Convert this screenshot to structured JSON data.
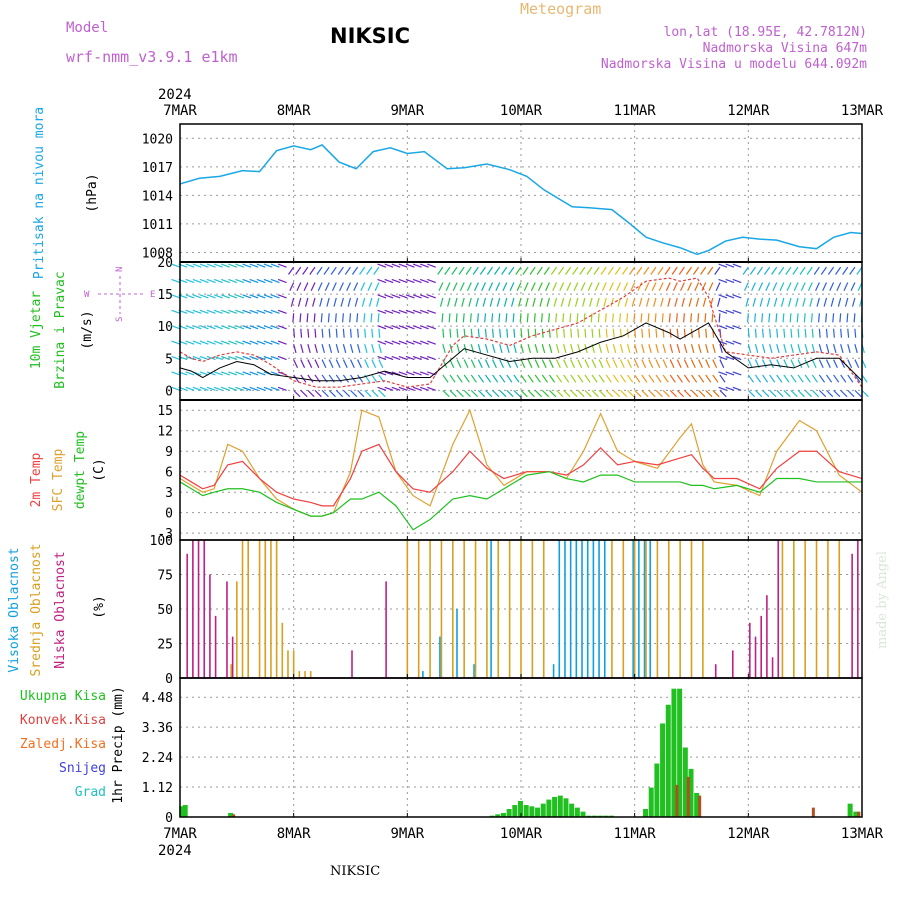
{
  "header": {
    "model_label": "Model",
    "model_name": "wrf-nmm_v3.9.1 e1km",
    "station": "NIKSIC",
    "product": "Meteogram",
    "coords": "lon,lat (18.95E, 42.7812N)",
    "elevation": "Nadmorska Visina 647m",
    "model_elevation": "Nadmorska Visina u modelu 644.092m",
    "year_top": "2024",
    "year_bottom": "2024",
    "footer_station": "NIKSIC",
    "credit": "made by Angel"
  },
  "colors": {
    "pressure": "#1aa7e6",
    "temp2m": "#f04040",
    "sfc_temp": "#e0a030",
    "dewpt": "#20c020",
    "high_cloud": "#10a0e0",
    "mid_cloud": "#d8a020",
    "low_cloud": "#c02080",
    "total_precip": "#20c020",
    "conv_precip": "#e04040",
    "frozen": "#f07020",
    "snow": "#4040e0",
    "grad": "#20c0c0",
    "wind_slow": "#7020c0",
    "wind_fast": "#ff3030"
  },
  "x_axis": {
    "tick_labels": [
      "7MAR",
      "8MAR",
      "9MAR",
      "10MAR",
      "11MAR",
      "12MAR",
      "13MAR"
    ],
    "range_days": [
      0,
      6
    ]
  },
  "panels": {
    "pressure": {
      "labels": [
        "Pritisak na nivou mora"
      ],
      "unit": "(hPa)",
      "ticks": [
        "1020",
        "1017",
        "1014",
        "1011",
        "1008"
      ]
    },
    "wind": {
      "labels": [
        "10m Vjetar",
        "Brzina i Pravac"
      ],
      "unit": "(m/s)",
      "ticks": [
        "20",
        "15",
        "10",
        "5",
        "0"
      ],
      "compass": {
        "n": "N",
        "s": "S",
        "e": "E",
        "w": "W"
      }
    },
    "temp": {
      "labels": [
        "2m Temp",
        "SFC Temp",
        "dewpt Temp"
      ],
      "unit": "(C)",
      "ticks": [
        "15",
        "12",
        "9",
        "6",
        "3",
        "0",
        "-3"
      ]
    },
    "cloud": {
      "labels": [
        "Visoka Oblacnost",
        "Srednja Oblacnost",
        "Niska Oblacnost"
      ],
      "unit": "(%)",
      "ticks": [
        "100",
        "75",
        "50",
        "25",
        "0"
      ]
    },
    "precip": {
      "legend": [
        "Ukupna Kisa",
        "Konvek.Kisa",
        "Zaledj.Kisa",
        "Snijeg",
        "Grad"
      ],
      "unit": "1hr Precip (mm)",
      "ticks": [
        "4.48",
        "3.36",
        "2.24",
        "1.12",
        "0"
      ]
    }
  },
  "chart_data": [
    {
      "type": "line",
      "title": "Pritisak na nivou mora",
      "ylabel": "(hPa)",
      "ylim": [
        1007,
        1021.5
      ],
      "x_unit": "days since 7MAR 00",
      "x": [
        0,
        0.17,
        0.35,
        0.55,
        0.7,
        0.85,
        1.0,
        1.15,
        1.25,
        1.4,
        1.55,
        1.7,
        1.85,
        2.0,
        2.15,
        2.35,
        2.5,
        2.7,
        2.9,
        3.05,
        3.2,
        3.45,
        3.6,
        3.8,
        3.95,
        4.1,
        4.25,
        4.4,
        4.55,
        4.65,
        4.8,
        4.95,
        5.1,
        5.25,
        5.45,
        5.6,
        5.75,
        5.9,
        6.0
      ],
      "values": [
        1015.2,
        1015.8,
        1016.0,
        1016.6,
        1016.5,
        1018.7,
        1019.2,
        1018.8,
        1019.3,
        1017.5,
        1016.8,
        1018.6,
        1019.0,
        1018.4,
        1018.6,
        1016.8,
        1016.9,
        1017.3,
        1016.7,
        1016.0,
        1014.6,
        1012.8,
        1012.7,
        1012.5,
        1011.1,
        1009.6,
        1009.0,
        1008.5,
        1007.8,
        1008.2,
        1009.2,
        1009.6,
        1009.4,
        1009.3,
        1008.6,
        1008.4,
        1009.6,
        1010.1,
        1010.0
      ]
    },
    {
      "type": "line",
      "title": "10m Vjetar Brzina i Pravac",
      "ylabel": "(m/s)",
      "ylim": [
        -1.5,
        20
      ],
      "x_unit": "days since 7MAR 00",
      "series": [
        {
          "x": [
            0,
            0.1,
            0.2,
            0.35,
            0.5,
            0.65,
            0.8,
            1.0,
            1.2,
            1.4,
            1.6,
            1.8,
            2.0,
            2.2,
            2.4,
            2.5,
            2.7,
            2.9,
            3.1,
            3.3,
            3.5,
            3.7,
            3.9,
            4.1,
            4.3,
            4.4,
            4.55,
            4.65,
            4.8,
            5.0,
            5.2,
            5.4,
            5.6,
            5.8,
            6.0
          ],
          "values": [
            3.5,
            3.0,
            2.0,
            3.5,
            4.5,
            4.0,
            2.5,
            2.0,
            1.5,
            1.5,
            2.0,
            3.0,
            2.0,
            2.0,
            5.0,
            6.5,
            5.5,
            4.5,
            5.0,
            5.0,
            6.0,
            7.5,
            8.5,
            10.5,
            9.0,
            8.0,
            9.5,
            10.5,
            6.0,
            3.5,
            4.0,
            3.5,
            5.0,
            5.0,
            1.5
          ]
        },
        {
          "x": [
            0,
            0.1,
            0.2,
            0.35,
            0.5,
            0.65,
            0.8,
            1.0,
            1.2,
            1.4,
            1.6,
            1.8,
            2.0,
            2.2,
            2.4,
            2.5,
            2.7,
            2.9,
            3.1,
            3.3,
            3.5,
            3.7,
            3.9,
            4.1,
            4.3,
            4.4,
            4.55,
            4.65,
            4.8,
            5.0,
            5.2,
            5.4,
            5.6,
            5.8,
            6.0
          ],
          "values": [
            6.0,
            5.0,
            4.5,
            5.5,
            6.0,
            5.5,
            4.0,
            1.5,
            0.5,
            0.5,
            1.0,
            1.5,
            0.5,
            1.0,
            7.0,
            8.5,
            8.0,
            7.0,
            8.5,
            9.5,
            10.5,
            12.5,
            14.5,
            17.0,
            17.5,
            17.0,
            17.5,
            14.5,
            6.0,
            5.5,
            5.0,
            5.5,
            6.0,
            5.5,
            0.5
          ]
        }
      ]
    },
    {
      "type": "line",
      "title": "2m Temp / SFC Temp / dewpt Temp",
      "ylabel": "(C)",
      "ylim": [
        -4,
        16.5
      ],
      "x_unit": "days since 7MAR 00",
      "series": [
        {
          "name": "2m Temp",
          "x": [
            0,
            0.1,
            0.2,
            0.3,
            0.42,
            0.55,
            0.7,
            0.85,
            1.0,
            1.15,
            1.25,
            1.35,
            1.5,
            1.6,
            1.75,
            1.9,
            2.05,
            2.2,
            2.4,
            2.55,
            2.7,
            2.85,
            3.05,
            3.25,
            3.4,
            3.55,
            3.7,
            3.85,
            4.0,
            4.2,
            4.4,
            4.5,
            4.6,
            4.7,
            4.9,
            5.1,
            5.25,
            5.45,
            5.6,
            5.8,
            6.0
          ],
          "values": [
            5.5,
            4.5,
            3.5,
            4.0,
            7.0,
            7.5,
            5.0,
            3.0,
            2.0,
            1.5,
            1.0,
            1.0,
            5.0,
            9.0,
            10.0,
            6.0,
            3.5,
            3.0,
            6.0,
            9.0,
            6.5,
            5.0,
            6.0,
            6.0,
            5.5,
            7.0,
            9.5,
            7.0,
            7.5,
            7.0,
            8.0,
            8.5,
            6.5,
            5.0,
            5.0,
            3.5,
            6.5,
            9.0,
            9.0,
            6.0,
            5.0
          ]
        },
        {
          "name": "SFC Temp",
          "x": [
            0,
            0.1,
            0.2,
            0.3,
            0.42,
            0.55,
            0.7,
            0.85,
            1.0,
            1.15,
            1.25,
            1.35,
            1.5,
            1.6,
            1.75,
            1.9,
            2.05,
            2.2,
            2.4,
            2.55,
            2.7,
            2.85,
            3.05,
            3.25,
            3.4,
            3.55,
            3.7,
            3.85,
            4.0,
            4.2,
            4.4,
            4.5,
            4.6,
            4.7,
            4.9,
            5.1,
            5.25,
            5.45,
            5.6,
            5.8,
            6.0
          ],
          "values": [
            5.0,
            4.0,
            3.0,
            3.5,
            10.0,
            9.0,
            5.0,
            2.0,
            0.5,
            -0.5,
            -0.5,
            0.0,
            6.0,
            15.0,
            14.0,
            6.0,
            2.5,
            1.0,
            10.0,
            15.0,
            7.0,
            4.0,
            6.0,
            6.0,
            5.0,
            9.0,
            14.5,
            9.0,
            7.5,
            6.5,
            11.0,
            13.0,
            7.0,
            4.5,
            4.0,
            2.5,
            9.0,
            13.5,
            12.0,
            5.5,
            3.0
          ]
        },
        {
          "name": "dewpt Temp",
          "x": [
            0,
            0.1,
            0.2,
            0.3,
            0.42,
            0.55,
            0.7,
            0.85,
            1.0,
            1.15,
            1.25,
            1.35,
            1.5,
            1.6,
            1.75,
            1.9,
            2.05,
            2.2,
            2.4,
            2.55,
            2.7,
            2.85,
            3.05,
            3.25,
            3.4,
            3.55,
            3.7,
            3.85,
            4.0,
            4.2,
            4.4,
            4.5,
            4.6,
            4.7,
            4.9,
            5.1,
            5.25,
            5.45,
            5.6,
            5.8,
            6.0
          ],
          "values": [
            4.5,
            3.5,
            2.5,
            3.0,
            3.5,
            3.5,
            3.0,
            1.5,
            0.5,
            -0.5,
            -0.5,
            0.0,
            2.0,
            2.0,
            3.0,
            1.0,
            -2.5,
            -1.0,
            2.0,
            2.5,
            2.0,
            3.5,
            5.5,
            6.0,
            5.0,
            4.5,
            5.5,
            5.5,
            4.5,
            4.5,
            4.5,
            4.0,
            4.0,
            3.5,
            4.0,
            3.0,
            5.0,
            5.0,
            4.5,
            4.5,
            4.5
          ]
        }
      ]
    },
    {
      "type": "bar",
      "title": "Visoka / Srednja / Niska Oblacnost",
      "ylabel": "(%)",
      "ylim": [
        0,
        100
      ],
      "x_unit": "days since 7MAR 00",
      "series": [
        {
          "name": "Visoka Oblacnost",
          "x": [
            2.15,
            2.3,
            2.45,
            2.6,
            2.75,
            3.3,
            3.35,
            3.4,
            3.45,
            3.5,
            3.55,
            3.6,
            3.65,
            3.7,
            3.75,
            4.0,
            4.05,
            4.1,
            4.15
          ],
          "values": [
            5,
            30,
            50,
            10,
            100,
            10,
            100,
            100,
            100,
            100,
            100,
            100,
            100,
            100,
            100,
            100,
            100,
            100,
            100
          ]
        },
        {
          "name": "Srednja Oblacnost",
          "x": [
            0.45,
            0.5,
            0.55,
            0.6,
            0.7,
            0.75,
            0.8,
            0.85,
            0.9,
            0.95,
            1.0,
            1.05,
            1.1,
            1.15,
            2.0,
            2.1,
            2.2,
            2.3,
            2.4,
            2.5,
            2.6,
            2.7,
            2.8,
            2.9,
            3.0,
            3.1,
            3.2,
            3.8,
            3.9,
            4.0,
            4.1,
            4.2,
            4.3,
            4.4,
            4.5,
            4.6,
            5.3,
            5.4,
            5.5,
            5.6,
            5.7,
            5.8
          ],
          "values": [
            10,
            70,
            100,
            100,
            100,
            100,
            100,
            100,
            40,
            20,
            20,
            5,
            5,
            5,
            100,
            100,
            100,
            100,
            100,
            100,
            100,
            100,
            100,
            100,
            100,
            100,
            100,
            100,
            100,
            100,
            100,
            100,
            100,
            100,
            100,
            100,
            100,
            100,
            100,
            100,
            100,
            100
          ]
        },
        {
          "name": "Niska Oblacnost",
          "x": [
            0.05,
            0.1,
            0.15,
            0.2,
            0.25,
            0.3,
            0.4,
            0.45,
            1.5,
            1.8,
            4.7,
            4.85,
            5.0,
            5.05,
            5.1,
            5.15,
            5.2,
            5.25,
            5.9,
            5.95
          ],
          "values": [
            90,
            100,
            100,
            100,
            75,
            45,
            70,
            30,
            20,
            70,
            10,
            20,
            40,
            30,
            45,
            60,
            15,
            100,
            90,
            100
          ]
        }
      ]
    },
    {
      "type": "bar",
      "title": "1hr Precip",
      "ylabel": "1hr Precip (mm)",
      "ylim": [
        0,
        5.2
      ],
      "x_unit": "days since 7MAR 00",
      "series": [
        {
          "name": "Ukupna Kisa",
          "x": [
            0.02,
            0.05,
            0.45,
            2.75,
            2.8,
            2.85,
            2.9,
            2.95,
            3.0,
            3.05,
            3.1,
            3.15,
            3.2,
            3.25,
            3.3,
            3.35,
            3.4,
            3.45,
            3.5,
            3.55,
            3.6,
            3.65,
            3.7,
            3.75,
            3.8,
            4.1,
            4.15,
            4.2,
            4.25,
            4.3,
            4.35,
            4.4,
            4.45,
            4.5,
            4.55,
            5.9,
            5.95
          ],
          "values": [
            0.4,
            0.45,
            0.15,
            0.05,
            0.1,
            0.15,
            0.3,
            0.45,
            0.6,
            0.45,
            0.4,
            0.35,
            0.5,
            0.65,
            0.75,
            0.8,
            0.7,
            0.5,
            0.35,
            0.2,
            0.05,
            0.05,
            0.05,
            0.05,
            0.05,
            0.3,
            1.1,
            2.0,
            3.5,
            4.2,
            4.8,
            4.8,
            2.6,
            1.8,
            0.9,
            0.5,
            0.2
          ]
        },
        {
          "name": "Konvek.Kisa",
          "x": [
            0.45,
            4.35,
            4.45,
            4.55,
            5.55,
            5.95
          ],
          "values": [
            0.1,
            1.2,
            1.5,
            0.8,
            0.35,
            0.2
          ]
        }
      ]
    }
  ]
}
